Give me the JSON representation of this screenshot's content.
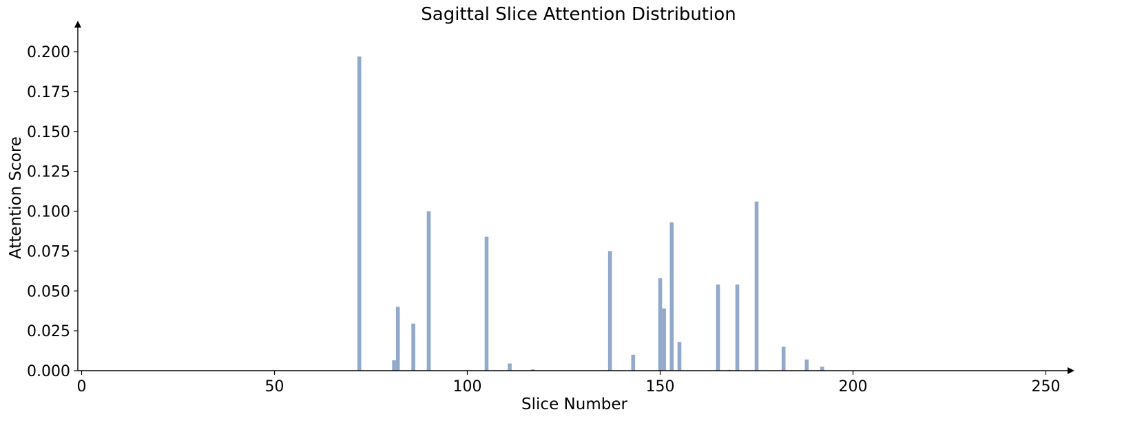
{
  "chart_data": {
    "type": "bar",
    "title": "Sagittal Slice Attention Distribution",
    "xlabel": "Slice Number",
    "ylabel": "Attention Score",
    "xlim": [
      -1,
      256
    ],
    "ylim": [
      0,
      0.22
    ],
    "xticks": [
      0,
      50,
      100,
      150,
      200,
      250
    ],
    "xtick_labels": [
      "0",
      "50",
      "100",
      "150",
      "200",
      "250"
    ],
    "yticks": [
      0,
      0.025,
      0.05,
      0.075,
      0.1,
      0.125,
      0.15,
      0.175,
      0.2
    ],
    "ytick_labels": [
      "0.000",
      "0.025",
      "0.050",
      "0.075",
      "0.100",
      "0.125",
      "0.150",
      "0.175",
      "0.200"
    ],
    "grid": false,
    "bar_color": "#92a9cc",
    "x": [
      72,
      81,
      82,
      86,
      90,
      105,
      111,
      117,
      137,
      143,
      150,
      151,
      153,
      155,
      165,
      168,
      170,
      175,
      182,
      188,
      192
    ],
    "values": [
      0.197,
      0.0065,
      0.04,
      0.0295,
      0.1,
      0.084,
      0.0045,
      0.0008,
      0.075,
      0.01,
      0.058,
      0.039,
      0.093,
      0.018,
      0.054,
      0.0005,
      0.054,
      0.106,
      0.015,
      0.007,
      0.0025
    ]
  }
}
